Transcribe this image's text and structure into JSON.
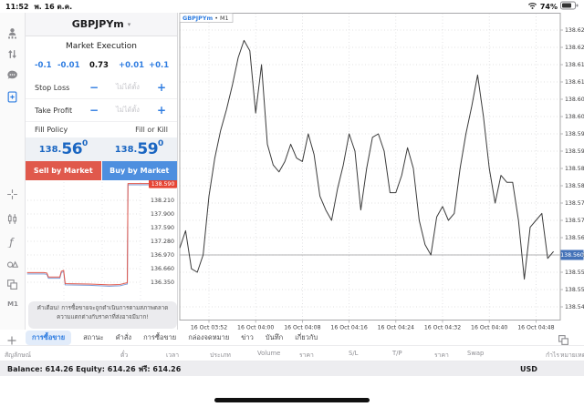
{
  "status_bar": {
    "time": "11:52",
    "date": "พ. 16 ต.ค.",
    "battery_percent": "74%"
  },
  "sidebar": {
    "nav_icons": [
      "trade-account-icon",
      "transfer-icon",
      "chat-icon",
      "new-order-icon"
    ],
    "tool_icons": [
      "crosshair-icon",
      "candlestick-icon",
      "indicators-icon",
      "objects-icon",
      "windows-icon"
    ],
    "timeframe_label": "M1"
  },
  "order_panel": {
    "symbol": "GBPJPYm",
    "symbol_caret": "▾",
    "execution_mode": "Market Execution",
    "volume": {
      "dec_big": "-0.1",
      "dec_small": "-0.01",
      "value": "0.73",
      "inc_small": "+0.01",
      "inc_big": "+0.1"
    },
    "stop_loss": {
      "label": "Stop Loss",
      "minus": "−",
      "value": "ไม่ได้ตั้ง",
      "plus": "+"
    },
    "take_profit": {
      "label": "Take Profit",
      "minus": "−",
      "value": "ไม่ได้ตั้ง",
      "plus": "+"
    },
    "fill_policy_label": "Fill Policy",
    "fill_policy_value": "Fill or Kill",
    "sell_price": {
      "prefix": "138.",
      "big": "56",
      "sup": "0"
    },
    "buy_price": {
      "prefix": "138.",
      "big": "59",
      "sup": "0"
    },
    "sell_button": "Sell by Market",
    "buy_button": "Buy by Market",
    "warning_line1": "คำเตือน! การซื้อขายจะถูกดำเนินการตามสภาพตลาด",
    "warning_line2": "ความแตกต่างกับราคาที่ส่งอาจมีมาก!"
  },
  "chart_data": [
    {
      "id": "main-chart",
      "type": "line",
      "title": "GBPJPYm • M1",
      "symbol": "GBPJPYm",
      "timeframe": "M1",
      "x_start_time": "16 Oct 03:47",
      "interval_minutes": 1,
      "prices": [
        138.562,
        138.567,
        138.556,
        138.555,
        138.56,
        138.577,
        138.588,
        138.596,
        138.602,
        138.609,
        138.617,
        138.622,
        138.619,
        138.601,
        138.615,
        138.592,
        138.586,
        138.584,
        138.587,
        138.592,
        138.588,
        138.587,
        138.595,
        138.589,
        138.577,
        138.573,
        138.57,
        138.579,
        138.586,
        138.595,
        138.59,
        138.573,
        138.585,
        138.594,
        138.595,
        138.59,
        138.578,
        138.578,
        138.583,
        138.591,
        138.585,
        138.57,
        138.563,
        138.56,
        138.571,
        138.574,
        138.57,
        138.572,
        138.585,
        138.595,
        138.603,
        138.612,
        138.6,
        138.585,
        138.575,
        138.583,
        138.581,
        138.581,
        138.57,
        138.553,
        138.568,
        138.57,
        138.572,
        138.559,
        138.561
      ],
      "x_ticks": [
        {
          "index": 5,
          "label": "16 Oct 03:52"
        },
        {
          "index": 13,
          "label": "16 Oct 04:00"
        },
        {
          "index": 21,
          "label": "16 Oct 04:08"
        },
        {
          "index": 29,
          "label": "16 Oct 04:16"
        },
        {
          "index": 37,
          "label": "16 Oct 04:24"
        },
        {
          "index": 45,
          "label": "16 Oct 04:32"
        },
        {
          "index": 53,
          "label": "16 Oct 04:40"
        },
        {
          "index": 61,
          "label": "16 Oct 04:48"
        }
      ],
      "y_ticks": [
        138.625,
        138.62,
        138.615,
        138.61,
        138.605,
        138.6,
        138.595,
        138.59,
        138.585,
        138.58,
        138.575,
        138.57,
        138.565,
        138.56,
        138.555,
        138.55,
        138.545
      ],
      "ylim": [
        138.541,
        138.63
      ],
      "current_price": 138.56,
      "current_price_label": "138.560",
      "grid": true,
      "legend_position": "none",
      "line_color": "#3b3b3b",
      "badge_color": "#4472b8"
    },
    {
      "id": "mini-chart",
      "type": "line",
      "title": "",
      "y_grid_values": [
        138.21,
        137.9,
        137.59,
        137.28,
        136.97,
        136.66,
        136.35
      ],
      "y_grid_labels": [
        "138.210",
        "137.900",
        "137.590",
        "137.280",
        "136.970",
        "136.660",
        "136.350"
      ],
      "ask_badge_label": "138.590",
      "ask_badge_value": 138.59,
      "badge_color": "#e64535",
      "grid": true,
      "series": [
        {
          "name": "bid",
          "color": "#7f9fd8",
          "points": [
            [
              0.01,
              136.54
            ],
            [
              0.12,
              136.54
            ],
            [
              0.14,
              136.53
            ],
            [
              0.15,
              136.44
            ],
            [
              0.225,
              136.44
            ],
            [
              0.235,
              136.57
            ],
            [
              0.25,
              136.59
            ],
            [
              0.26,
              136.29
            ],
            [
              0.42,
              136.28
            ],
            [
              0.55,
              136.26
            ],
            [
              0.62,
              136.27
            ],
            [
              0.655,
              136.3
            ],
            [
              0.668,
              136.31
            ],
            [
              0.672,
              138.56
            ],
            [
              0.99,
              138.56
            ]
          ]
        },
        {
          "name": "ask",
          "color": "#e0564a",
          "points": [
            [
              0.01,
              136.57
            ],
            [
              0.12,
              136.57
            ],
            [
              0.14,
              136.56
            ],
            [
              0.15,
              136.47
            ],
            [
              0.225,
              136.47
            ],
            [
              0.235,
              136.6
            ],
            [
              0.25,
              136.62
            ],
            [
              0.26,
              136.32
            ],
            [
              0.42,
              136.31
            ],
            [
              0.55,
              136.29
            ],
            [
              0.62,
              136.3
            ],
            [
              0.655,
              136.33
            ],
            [
              0.668,
              136.34
            ],
            [
              0.672,
              138.59
            ],
            [
              0.99,
              138.59
            ]
          ]
        }
      ]
    }
  ],
  "tab_bar": {
    "tabs": [
      {
        "label": "การซื้อขาย",
        "active": true
      },
      {
        "label": "สถานะ",
        "active": false
      },
      {
        "label": "คำสั่ง",
        "active": false
      },
      {
        "label": "การซื้อขาย",
        "active": false
      },
      {
        "label": "กล่องจดหมาย",
        "active": false
      },
      {
        "label": "ข่าว",
        "active": false
      },
      {
        "label": "บันทึก",
        "active": false
      },
      {
        "label": "เกี่ยวกับ",
        "active": false
      }
    ]
  },
  "positions_table": {
    "headers": [
      "สัญลักษณ์",
      "ตั๋ว",
      "เวลา",
      "ประเภท",
      "Volume",
      "ราคา",
      "S/L",
      "T/P",
      "ราคา",
      "Swap",
      "กำไร",
      "หมายเหตุ"
    ]
  },
  "footer": {
    "balance_text": "Balance: 614.26 Equity: 614.26 ฟรี: 614.26",
    "currency": "USD"
  },
  "colors": {
    "accent_blue": "#2f7de1",
    "price_blue": "#1a66c2",
    "sell_red": "#e0594c",
    "buy_blue": "#4e8fdf",
    "ask_badge_red": "#e64535",
    "price_badge_blue": "#4472b8"
  }
}
